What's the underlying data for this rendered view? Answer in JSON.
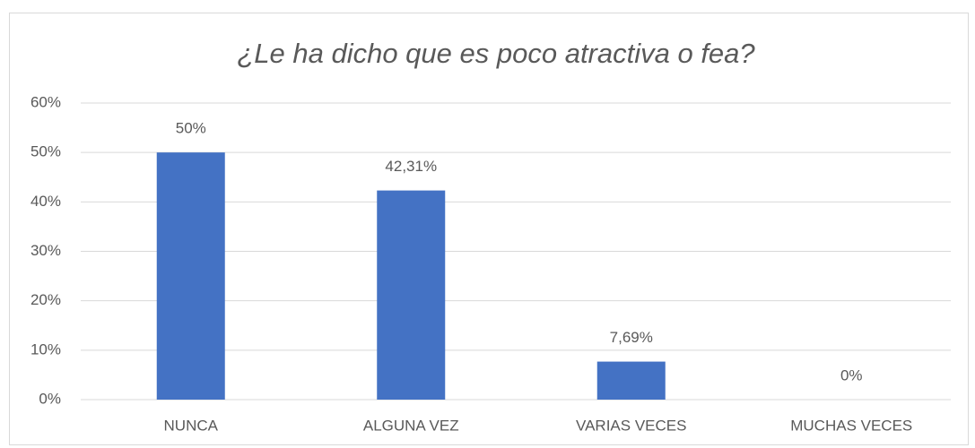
{
  "chart_data": {
    "type": "bar",
    "title": "¿Le ha dicho que es poco atractiva o fea?",
    "categories": [
      "NUNCA",
      "ALGUNA VEZ",
      "VARIAS VECES",
      "MUCHAS VECES"
    ],
    "values": [
      50,
      42.31,
      7.69,
      0
    ],
    "value_labels": [
      "50%",
      "42,31%",
      "7,69%",
      "0%"
    ],
    "color": "#4472c4",
    "ylim": [
      0,
      60
    ],
    "yticks": [
      {
        "value": 0,
        "label": "0%"
      },
      {
        "value": 10,
        "label": "10%"
      },
      {
        "value": 20,
        "label": "20%"
      },
      {
        "value": 30,
        "label": "30%"
      },
      {
        "value": 40,
        "label": "40%"
      },
      {
        "value": 50,
        "label": "50%"
      },
      {
        "value": 60,
        "label": "60%"
      }
    ],
    "grid": true
  }
}
